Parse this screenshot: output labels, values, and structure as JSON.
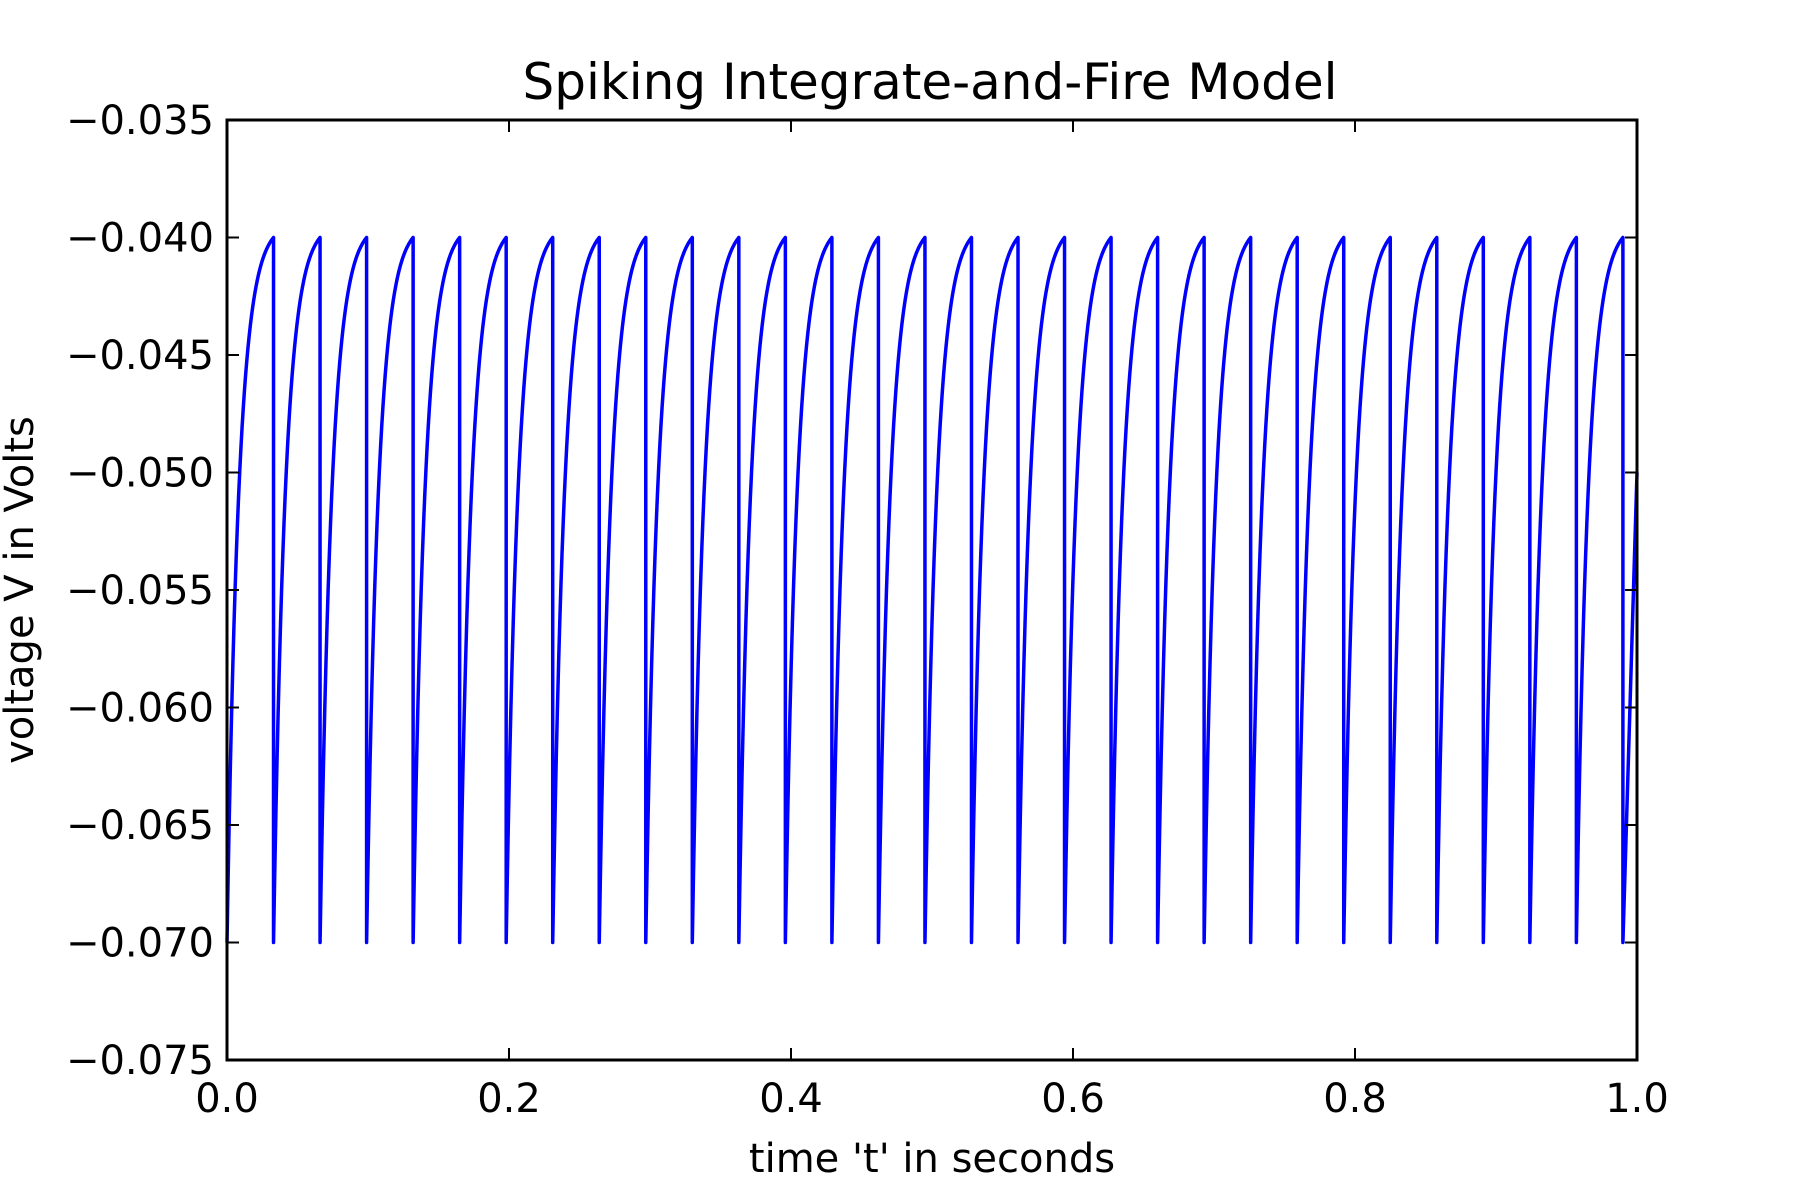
{
  "chart_data": {
    "type": "line",
    "title": "Spiking Integrate-and-Fire Model",
    "xlabel": "time 't' in seconds",
    "ylabel": "voltage V in Volts",
    "xlim": [
      0.0,
      1.0
    ],
    "ylim": [
      -0.075,
      -0.035
    ],
    "x_ticks": [
      "0.0",
      "0.2",
      "0.4",
      "0.6",
      "0.8",
      "1.0"
    ],
    "x_tick_values": [
      0.0,
      0.2,
      0.4,
      0.6,
      0.8,
      1.0
    ],
    "y_ticks": [
      "−0.075",
      "−0.070",
      "−0.065",
      "−0.060",
      "−0.055",
      "−0.050",
      "−0.045",
      "−0.040",
      "−0.035"
    ],
    "y_tick_values": [
      -0.075,
      -0.07,
      -0.065,
      -0.06,
      -0.055,
      -0.05,
      -0.045,
      -0.04,
      -0.035
    ],
    "grid": false,
    "legend": false,
    "series": [
      {
        "color": "#0000ff",
        "reset_voltage": -0.07,
        "threshold_voltage": -0.04,
        "spike_times": [
          0.033,
          0.066,
          0.099,
          0.132,
          0.165,
          0.198,
          0.231,
          0.264,
          0.297,
          0.33,
          0.363,
          0.396,
          0.429,
          0.462,
          0.495,
          0.528,
          0.561,
          0.594,
          0.627,
          0.66,
          0.693,
          0.726,
          0.759,
          0.792,
          0.825,
          0.858,
          0.891,
          0.924,
          0.957,
          0.99
        ],
        "end_value": -0.05
      }
    ]
  }
}
